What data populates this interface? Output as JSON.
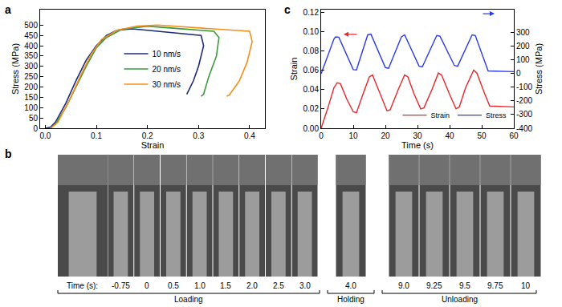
{
  "chart_data": [
    {
      "label": "a",
      "type": "line",
      "x_label": "Strain",
      "y_label": "Stress (MPa)",
      "xlim": [
        -0.01,
        0.43
      ],
      "xticks": [
        {
          "value": 0,
          "label": "0.0"
        },
        0.1,
        0.2,
        0.3,
        0.4
      ],
      "ylim": [
        0,
        575
      ],
      "yticks": [
        0,
        50,
        100,
        150,
        200,
        250,
        300,
        350,
        400,
        450,
        500
      ],
      "grid": false,
      "legend": "center",
      "series": [
        {
          "name": "10 nm/s",
          "color": "#1c2a7a",
          "x": [
            0,
            0.01,
            0.02,
            0.04,
            0.06,
            0.08,
            0.1,
            0.12,
            0.14,
            0.17,
            0.2,
            0.24,
            0.28,
            0.305,
            0.31,
            0.3,
            0.29,
            0.28,
            0.277
          ],
          "values": [
            0,
            5,
            30,
            120,
            230,
            330,
            400,
            450,
            475,
            482,
            475,
            465,
            455,
            450,
            400,
            300,
            230,
            175,
            165
          ]
        },
        {
          "name": "20 nm/s",
          "color": "#3a9a3a",
          "x": [
            0.01,
            0.02,
            0.04,
            0.06,
            0.08,
            0.1,
            0.12,
            0.15,
            0.2,
            0.25,
            0.3,
            0.33,
            0.34,
            0.335,
            0.32,
            0.31,
            0.305
          ],
          "values": [
            0,
            20,
            100,
            200,
            300,
            390,
            440,
            480,
            495,
            485,
            475,
            470,
            440,
            350,
            250,
            165,
            155
          ]
        },
        {
          "name": "30 nm/s",
          "color": "#f5901e",
          "x": [
            0.01,
            0.025,
            0.05,
            0.07,
            0.09,
            0.11,
            0.14,
            0.18,
            0.22,
            0.28,
            0.34,
            0.38,
            0.4,
            0.405,
            0.395,
            0.38,
            0.36,
            0.355
          ],
          "values": [
            0,
            30,
            150,
            260,
            360,
            430,
            475,
            495,
            500,
            490,
            480,
            475,
            470,
            420,
            320,
            230,
            160,
            155
          ]
        }
      ]
    },
    {
      "label": "c",
      "type": "line",
      "x_label": "Time (s)",
      "y_label": "Strain",
      "y2_label": "Stress (MPa)",
      "xlim": [
        0,
        60
      ],
      "xticks": [
        0,
        10,
        20,
        30,
        40,
        50,
        60
      ],
      "ylim": [
        0,
        0.1225
      ],
      "yticks": [
        {
          "value": 0,
          "label": "0.00"
        },
        {
          "value": 0.02,
          "label": "0.02"
        },
        {
          "value": 0.04,
          "label": "0.04"
        },
        {
          "value": 0.06,
          "label": "0.06"
        },
        {
          "value": 0.08,
          "label": "0.08"
        },
        {
          "value": 0.1,
          "label": "0.10"
        },
        {
          "value": 0.12,
          "label": "0.12"
        }
      ],
      "y2lim": [
        -400,
        470
      ],
      "y2ticks": [
        -400,
        -300,
        -200,
        -100,
        0,
        100,
        200,
        300
      ],
      "grid": false,
      "legend": "lower right",
      "series": [
        {
          "name": "Strain",
          "color": "#e8262b",
          "x": [
            0,
            2,
            4,
            5,
            6,
            8,
            10,
            11,
            13,
            15,
            16,
            18.5,
            20.5,
            21.5,
            24,
            26,
            27,
            29,
            31,
            32,
            34.5,
            36.5,
            37.5,
            40,
            42,
            43,
            45,
            47.5,
            48.5,
            51,
            52.5,
            60
          ],
          "values": [
            0,
            0.02,
            0.042,
            0.047,
            0.046,
            0.03,
            0.017,
            0.016,
            0.035,
            0.053,
            0.055,
            0.035,
            0.018,
            0.019,
            0.04,
            0.055,
            0.053,
            0.035,
            0.02,
            0.021,
            0.04,
            0.057,
            0.055,
            0.035,
            0.02,
            0.022,
            0.042,
            0.06,
            0.057,
            0.035,
            0.023,
            0.022
          ]
        },
        {
          "name": "Stress",
          "color": "#2b3be8",
          "axis": "y2",
          "x": [
            0,
            4,
            4.5,
            5.5,
            10,
            11,
            14.5,
            15.5,
            20,
            21,
            25,
            26,
            30.5,
            31.5,
            36,
            37,
            41.5,
            42.5,
            47,
            48,
            52,
            60
          ],
          "values": [
            0,
            255,
            270,
            268,
            30,
            28,
            285,
            290,
            45,
            40,
            270,
            285,
            55,
            50,
            280,
            275,
            60,
            55,
            285,
            280,
            20,
            15
          ]
        }
      ]
    }
  ],
  "image_strip": {
    "label": "b",
    "time_label": "Time (s):",
    "phases": [
      {
        "label": "Loading",
        "times": [
          "-0.75",
          "0",
          "0.5",
          "1.0",
          "1.5",
          "2.0",
          "2.5",
          "3.0"
        ]
      },
      {
        "label": "Holding",
        "times": [
          "4.0"
        ]
      },
      {
        "label": "Unloading",
        "times": [
          "9.0",
          "9.25",
          "9.5",
          "9.75",
          "10"
        ]
      }
    ]
  }
}
